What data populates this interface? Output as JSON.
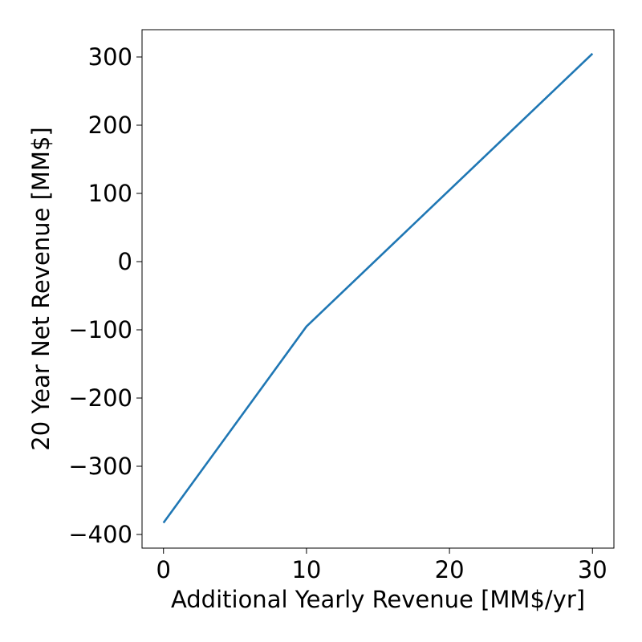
{
  "chart_data": {
    "type": "line",
    "title": "",
    "xlabel": "Additional Yearly Revenue [MM$/yr]",
    "ylabel": "20 Year Net Revenue [MM$]",
    "xlim": [
      -1.5,
      31.5
    ],
    "ylim": [
      -420,
      340
    ],
    "xticks": [
      0,
      10,
      20,
      30
    ],
    "yticks": [
      -400,
      -300,
      -200,
      -100,
      0,
      100,
      200,
      300
    ],
    "xtick_labels": [
      "0",
      "10",
      "20",
      "30"
    ],
    "ytick_labels": [
      "−400",
      "−300",
      "−200",
      "−100",
      "0",
      "100",
      "200",
      "300"
    ],
    "grid": false,
    "series": [
      {
        "color": "#1f77b4",
        "x": [
          0,
          10,
          30
        ],
        "y": [
          -383,
          -95,
          305
        ]
      }
    ]
  }
}
